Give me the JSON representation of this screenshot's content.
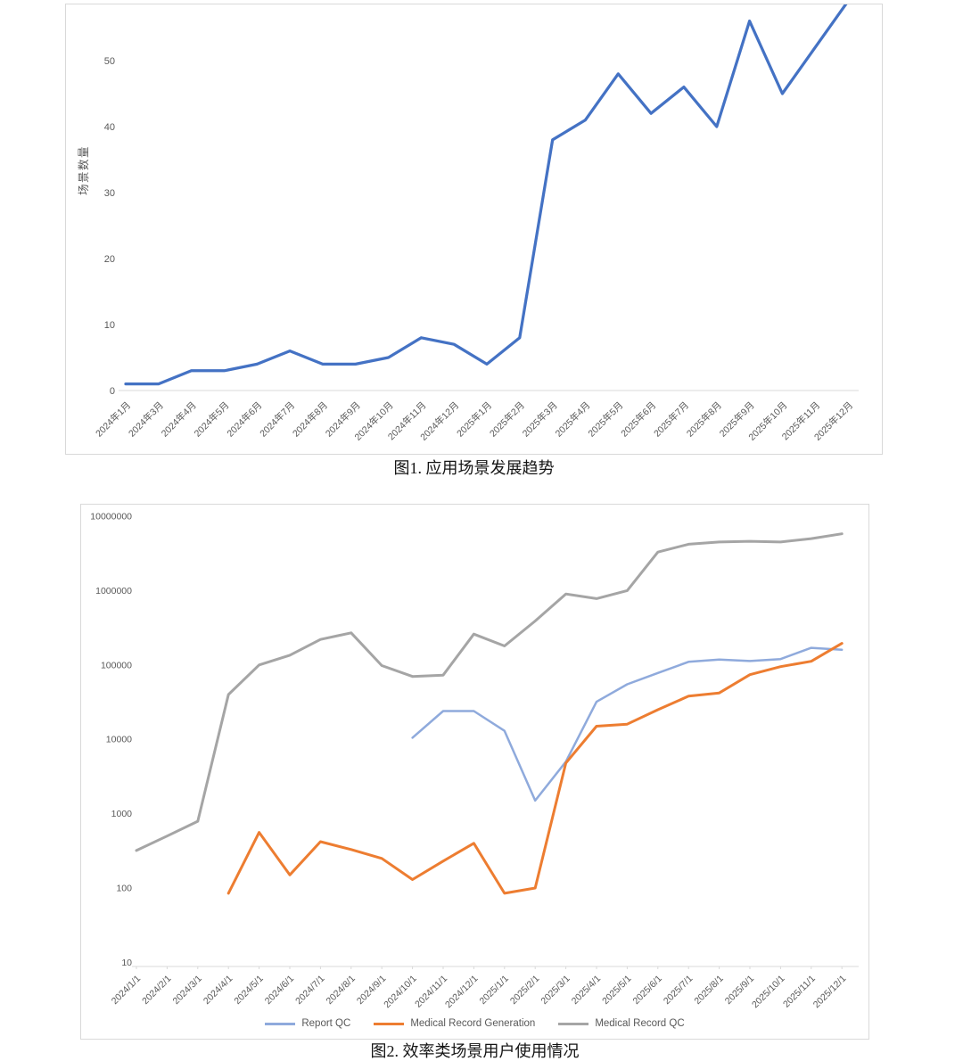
{
  "figure1": {
    "caption": "图1. 应用场景发展趋势"
  },
  "figure2": {
    "caption": "图2. 效率类场景用户使用情况"
  },
  "chart_data": [
    {
      "type": "line",
      "title": "",
      "xlabel": "",
      "ylabel": "场景数量",
      "ylim": [
        0,
        59
      ],
      "y_ticks": [
        0,
        10,
        20,
        30,
        40,
        50
      ],
      "grid": false,
      "legend_position": "none",
      "categories": [
        "2024年1月",
        "2024年3月",
        "2024年4月",
        "2024年5月",
        "2024年6月",
        "2024年7月",
        "2024年8月",
        "2024年9月",
        "2024年10月",
        "2024年11月",
        "2024年12月",
        "2025年1月",
        "2025年2月",
        "2025年3月",
        "2025年4月",
        "2025年5月",
        "2025年6月",
        "2025年7月",
        "2025年8月",
        "2025年9月",
        "2025年10月",
        "2025年11月",
        "2025年12月"
      ],
      "series": [
        {
          "name": "场景数量",
          "color": "#4472C4",
          "values": [
            1,
            1,
            3,
            3,
            4,
            6,
            4,
            4,
            5,
            8,
            7,
            4,
            8,
            38,
            41,
            48,
            42,
            46,
            40,
            56,
            45,
            52,
            59
          ]
        }
      ]
    },
    {
      "type": "line",
      "title": "",
      "xlabel": "",
      "ylabel": "",
      "y_scale": "log",
      "ylim": [
        10,
        10000000
      ],
      "y_ticks": [
        "10000000",
        "1000000",
        "100000",
        "10000",
        "1000",
        "100",
        "10"
      ],
      "grid": false,
      "legend_position": "bottom",
      "categories": [
        "2024/1/1",
        "2024/2/1",
        "2024/3/1",
        "2024/4/1",
        "2024/5/1",
        "2024/6/1",
        "2024/7/1",
        "2024/8/1",
        "2024/9/1",
        "2024/10/1",
        "2024/11/1",
        "2024/12/1",
        "2025/1/1",
        "2025/2/1",
        "2025/3/1",
        "2025/4/1",
        "2025/5/1",
        "2025/6/1",
        "2025/7/1",
        "2025/8/1",
        "2025/9/1",
        "2025/10/1",
        "2025/11/1",
        "2025/12/1"
      ],
      "series": [
        {
          "name": "Report QC",
          "color": "#8FAADC",
          "values": [
            null,
            null,
            null,
            null,
            null,
            null,
            null,
            null,
            null,
            10500,
            24000,
            24000,
            13000,
            1500,
            5000,
            32000,
            55000,
            78000,
            110000,
            118000,
            113000,
            120000,
            170000,
            160000
          ]
        },
        {
          "name": "Medical Record Generation",
          "color": "#ED7D31",
          "values": [
            null,
            null,
            null,
            85,
            560,
            150,
            420,
            330,
            250,
            130,
            230,
            400,
            85,
            100,
            4800,
            15000,
            16000,
            25000,
            38000,
            42000,
            74000,
            95000,
            112000,
            195000
          ]
        },
        {
          "name": "Medical Record QC",
          "color": "#A5A5A5",
          "values": [
            320,
            500,
            790,
            40000,
            100000,
            135000,
            220000,
            270000,
            98000,
            70000,
            73000,
            260000,
            180000,
            390000,
            900000,
            780000,
            1000000,
            3300000,
            4200000,
            4500000,
            4600000,
            4500000,
            5000000,
            5800000
          ]
        }
      ]
    }
  ]
}
